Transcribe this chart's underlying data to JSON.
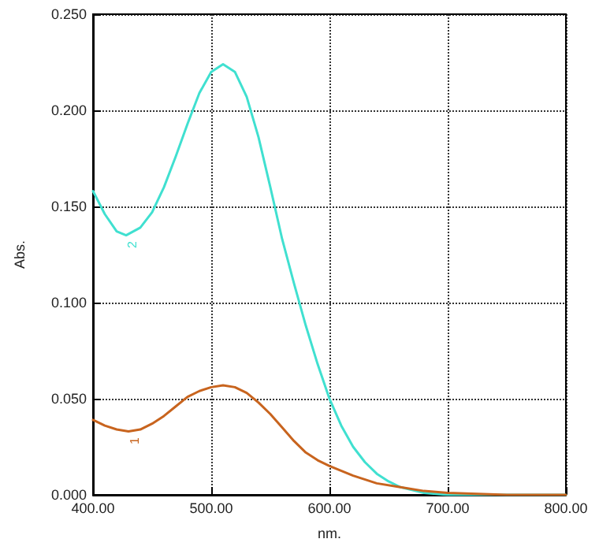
{
  "chart_data": {
    "type": "line",
    "xlabel": "nm.",
    "ylabel": "Abs.",
    "xlim": [
      400,
      800
    ],
    "xticks": [
      {
        "value": 400,
        "label": "400.00"
      },
      {
        "value": 500,
        "label": "500.00"
      },
      {
        "value": 600,
        "label": "600.00"
      },
      {
        "value": 700,
        "label": "700.00"
      },
      {
        "value": 800,
        "label": "800.00"
      }
    ],
    "ylim": [
      0,
      0.25
    ],
    "yticks": [
      {
        "value": 0,
        "label": "0.000"
      },
      {
        "value": 0.05,
        "label": "0.050"
      },
      {
        "value": 0.1,
        "label": "0.100"
      },
      {
        "value": 0.15,
        "label": "0.150"
      },
      {
        "value": 0.2,
        "label": "0.200"
      },
      {
        "value": 0.25,
        "label": "0.250"
      }
    ],
    "grid": true,
    "legend": false,
    "marker": "none",
    "line_style": "solid",
    "series": [
      {
        "name": "2",
        "color": "#40e0d0",
        "x": [
          400,
          410,
          420,
          428,
          440,
          450,
          460,
          470,
          480,
          490,
          500,
          510,
          520,
          530,
          540,
          550,
          560,
          570,
          580,
          590,
          600,
          610,
          620,
          630,
          640,
          650,
          660,
          680,
          700,
          750,
          800
        ],
        "values": [
          0.158,
          0.146,
          0.137,
          0.135,
          0.139,
          0.147,
          0.16,
          0.176,
          0.193,
          0.209,
          0.22,
          0.224,
          0.22,
          0.207,
          0.186,
          0.16,
          0.133,
          0.11,
          0.088,
          0.068,
          0.05,
          0.036,
          0.025,
          0.017,
          0.011,
          0.007,
          0.004,
          0.001,
          0,
          0,
          0
        ]
      },
      {
        "name": "1",
        "color": "#c8641e",
        "x": [
          400,
          410,
          420,
          430,
          440,
          450,
          460,
          470,
          480,
          490,
          500,
          510,
          520,
          530,
          540,
          550,
          560,
          570,
          580,
          590,
          600,
          620,
          640,
          660,
          680,
          700,
          750,
          800
        ],
        "values": [
          0.039,
          0.036,
          0.034,
          0.033,
          0.034,
          0.037,
          0.041,
          0.046,
          0.051,
          0.054,
          0.056,
          0.057,
          0.056,
          0.053,
          0.048,
          0.042,
          0.035,
          0.028,
          0.022,
          0.018,
          0.015,
          0.01,
          0.006,
          0.004,
          0.002,
          0.001,
          0,
          0
        ]
      }
    ]
  }
}
